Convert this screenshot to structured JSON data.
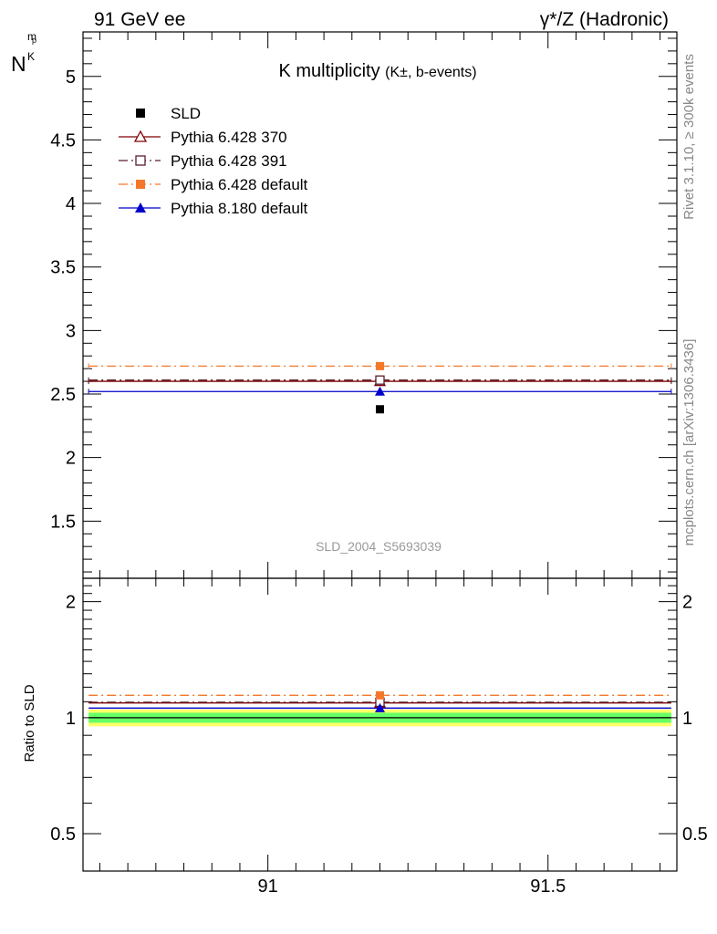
{
  "header": {
    "left": "91 GeV ee",
    "right": "γ*/Z (Hadronic)"
  },
  "side_labels": {
    "rivet": "Rivet 3.1.10, ≥ 300k events",
    "mcplots": "mcplots.cern.ch [arXiv:1306.3436]"
  },
  "main_panel": {
    "title": "K multiplicity",
    "title_sub": "(K±, b-events)",
    "ylabel": "N",
    "ylabel_sub": "K",
    "ylabel_sup": "p",
    "ylabel_sub2": "m",
    "watermark": "SLD_2004_S5693039"
  },
  "ratio_panel": {
    "ylabel": "Ratio to SLD"
  },
  "legend": [
    {
      "name": "SLD",
      "color": "#000000",
      "marker": "square-filled",
      "line": "none"
    },
    {
      "name": "Pythia 6.428 370",
      "color": "#7f0000",
      "marker": "triangle-open",
      "line": "solid"
    },
    {
      "name": "Pythia 6.428 391",
      "color": "#5a1e2e",
      "marker": "square-open",
      "line": "dashdot"
    },
    {
      "name": "Pythia 6.428 default",
      "color": "#f4782a",
      "marker": "square-filled",
      "line": "dashdot"
    },
    {
      "name": "Pythia 8.180 default",
      "color": "#0000cc",
      "marker": "triangle-filled",
      "line": "solid"
    }
  ],
  "chart_data": [
    {
      "type": "scatter",
      "panel": "main",
      "title": "K multiplicity (K±, b-events)",
      "xlim": [
        90.67,
        91.73
      ],
      "ylim": [
        1.05,
        5.35
      ],
      "x_ticks": [
        91,
        91.5
      ],
      "x_tick_labels": [
        "91",
        "91.5"
      ],
      "y_ticks": [
        1.5,
        2,
        2.5,
        3,
        3.5,
        4,
        4.5,
        5
      ],
      "y_tick_labels": [
        "1.5",
        "2",
        "2.5",
        "3",
        "3.5",
        "4",
        "4.5",
        "5"
      ],
      "x_range": [
        90.68,
        91.72
      ],
      "x_center": 91.2,
      "series": [
        {
          "name": "SLD",
          "x": 91.2,
          "y": 2.38
        },
        {
          "name": "Pythia 6.428 370",
          "x": 91.2,
          "y": 2.6
        },
        {
          "name": "Pythia 6.428 391",
          "x": 91.2,
          "y": 2.61
        },
        {
          "name": "Pythia 6.428 default",
          "x": 91.2,
          "y": 2.72
        },
        {
          "name": "Pythia 8.180 default",
          "x": 91.2,
          "y": 2.52
        }
      ]
    },
    {
      "type": "scatter",
      "panel": "ratio",
      "ylabel": "Ratio to SLD",
      "ylim": [
        0.4,
        2.3
      ],
      "y_scale": "log",
      "y_ticks": [
        0.5,
        1,
        2
      ],
      "y_tick_labels": [
        "0.5",
        "1",
        "2"
      ],
      "bands": [
        {
          "from": 0.95,
          "to": 1.05,
          "color": "#ffff66"
        },
        {
          "from": 0.97,
          "to": 1.03,
          "color": "#66ff66"
        }
      ],
      "series": [
        {
          "name": "Pythia 6.428 370",
          "x": 91.2,
          "y": 1.092
        },
        {
          "name": "Pythia 6.428 391",
          "x": 91.2,
          "y": 1.097
        },
        {
          "name": "Pythia 6.428 default",
          "x": 91.2,
          "y": 1.143
        },
        {
          "name": "Pythia 8.180 default",
          "x": 91.2,
          "y": 1.059
        }
      ]
    }
  ]
}
